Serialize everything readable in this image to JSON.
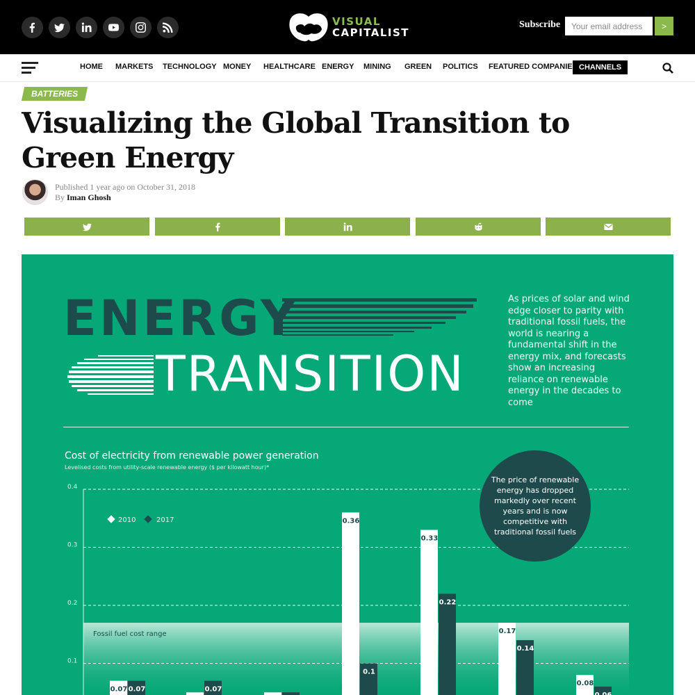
{
  "header": {
    "social_icons": [
      "facebook-icon",
      "twitter-icon",
      "linkedin-icon",
      "youtube-icon",
      "instagram-icon",
      "rss-icon"
    ],
    "logo_line1": "VISUAL",
    "logo_line2": "CAPITALIST",
    "subscribe_label": "Subscribe",
    "email_placeholder": "Your email address",
    "subscribe_button": ">"
  },
  "nav": {
    "items": [
      "HOME",
      "MARKETS",
      "TECHNOLOGY",
      "MONEY",
      "HEALTHCARE",
      "ENERGY",
      "MINING",
      "GREEN",
      "POLITICS",
      "FEATURED COMPANIES"
    ],
    "channels": "CHANNELS"
  },
  "article": {
    "category": "BATTERIES",
    "title": "Visualizing the Global Transition to Green Energy",
    "published": "Published 1 year ago on October 31, 2018",
    "by": "By",
    "author": "Iman Ghosh"
  },
  "share_icons": [
    "twitter-icon",
    "facebook-icon",
    "linkedin-icon",
    "reddit-icon",
    "email-icon"
  ],
  "infographic": {
    "headline_1": "ENERGY",
    "headline_2": "TRANSITION",
    "intro": "As prices of solar and wind edge closer to parity with traditional fossil fuels, the world is nearing a fundamental shift in the energy mix, and forecasts show an increasing reliance on renewable energy in the decades to come",
    "bubble": "The price of renewable energy has dropped markedly over recent years and is now competitive with traditional fossil fuels",
    "colors": {
      "background": "#06a878",
      "dark": "#1d4a4b",
      "bar_2010": "#ffffff",
      "bar_2017": "#1e4a4c"
    }
  },
  "chart_data": {
    "type": "bar",
    "title": "Cost of electricity from renewable power generation",
    "subtitle": "Levelised costs from utility-scale renewable energy ($ per kilowatt hour)*",
    "ylim": [
      0,
      0.4
    ],
    "yticks": [
      "0.4",
      "0.3",
      "0.2",
      "0.1"
    ],
    "grid": true,
    "legend": [
      "2010",
      "2017"
    ],
    "legend_placement": "top-left",
    "band_label": "Fossil fuel cost range",
    "band_range": [
      0.05,
      0.17
    ],
    "series": [
      {
        "name": "2010",
        "values": [
          0.07,
          0.05,
          0.05,
          0.36,
          0.33,
          0.17,
          0.08
        ]
      },
      {
        "name": "2017",
        "values": [
          0.07,
          0.07,
          0.05,
          0.1,
          0.22,
          0.14,
          0.06
        ]
      }
    ],
    "data_labels": [
      [
        "0.07",
        "",
        "",
        "0.36",
        "0.33",
        "0.17",
        "0.08"
      ],
      [
        "0.07",
        "0.07",
        "",
        "0.1",
        "0.22",
        "0.14",
        "0.06"
      ]
    ]
  }
}
